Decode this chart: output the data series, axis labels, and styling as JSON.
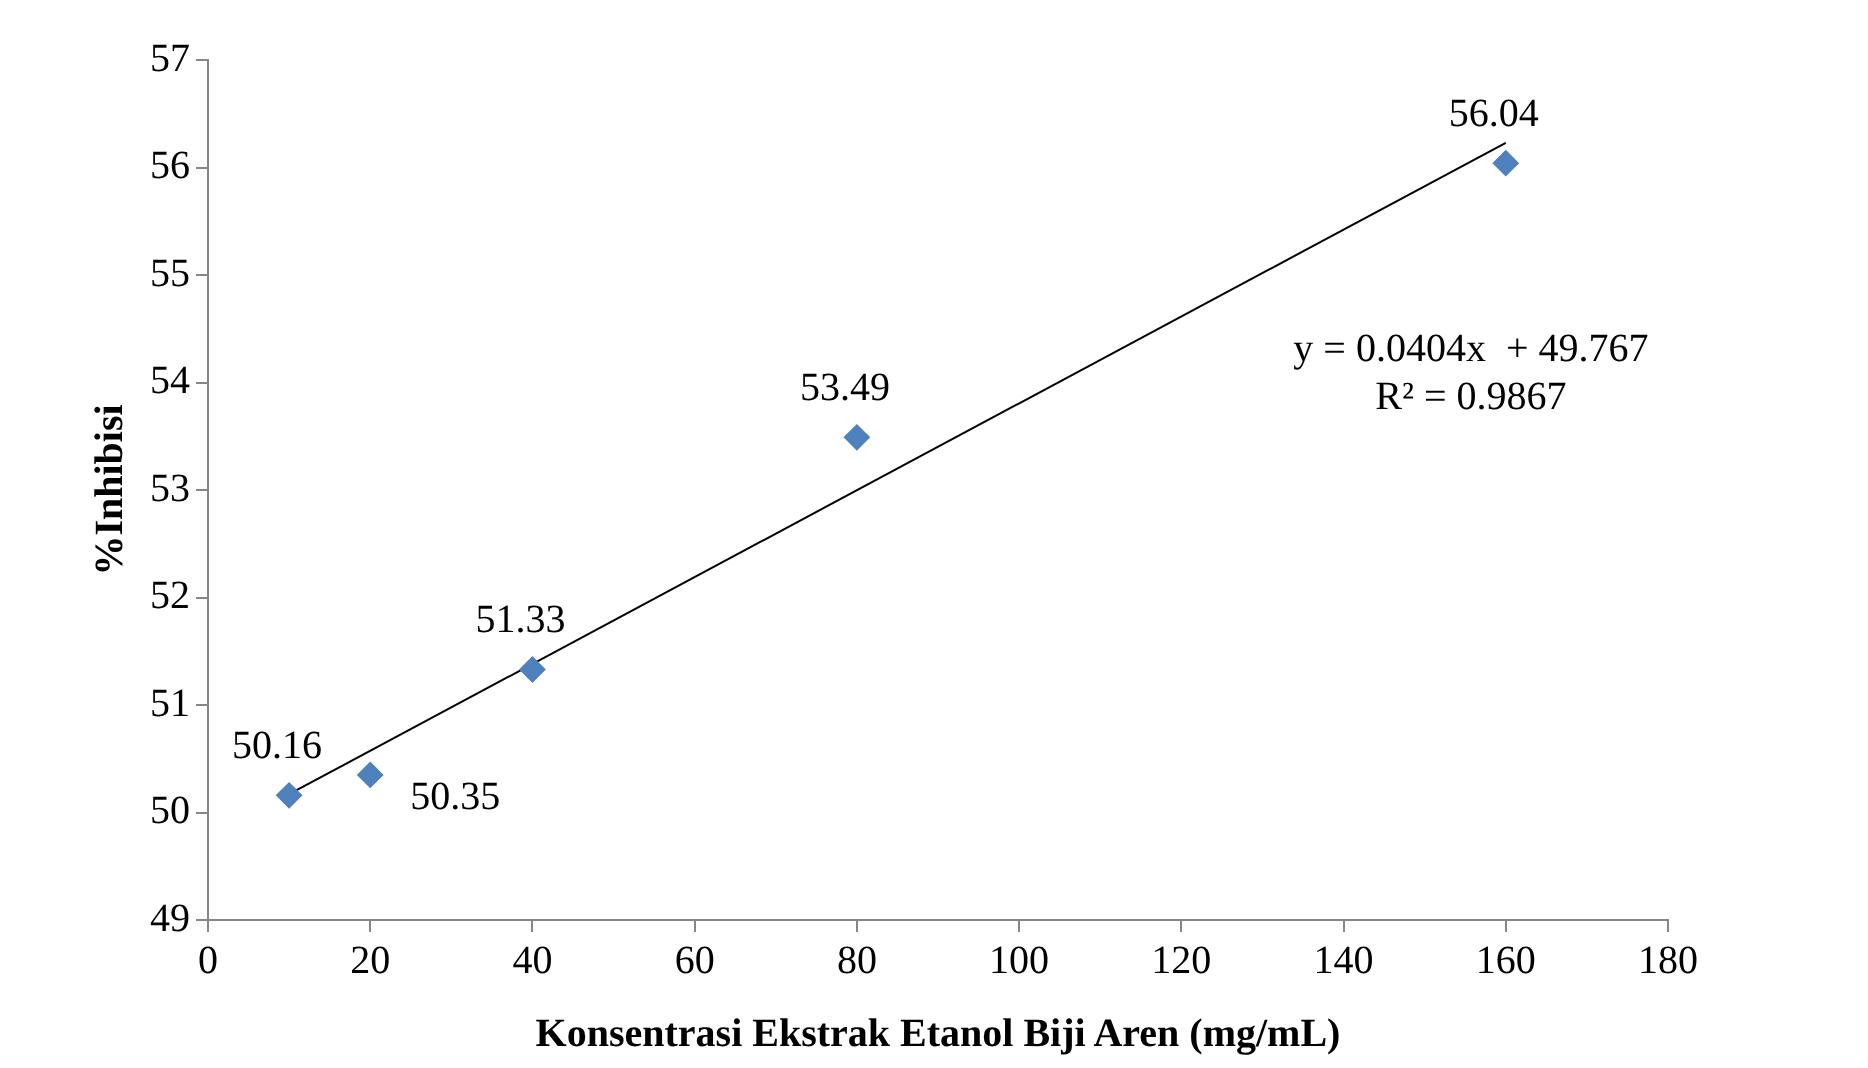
{
  "chart_data": {
    "type": "scatter",
    "xlabel": "Konsentrasi Ekstrak Etanol Biji Aren (mg/mL)",
    "ylabel": "%Inhibisi",
    "x": [
      10,
      20,
      40,
      80,
      160
    ],
    "series": [
      {
        "color": "#4f81bd",
        "values": [
          50.16,
          50.35,
          51.33,
          53.49,
          56.04
        ],
        "value_labels": [
          "50.16",
          "50.35",
          "51.33",
          "53.49",
          "56.04"
        ]
      },
      {
        "type": "line",
        "color": "#000000",
        "x": [
          10,
          160
        ],
        "values": [
          50.17,
          56.23
        ],
        "marker": "none"
      }
    ],
    "xlim": [
      0,
      180
    ],
    "xticks": [
      0,
      20,
      40,
      60,
      80,
      100,
      120,
      140,
      160,
      180
    ],
    "ylim": [
      49,
      57
    ],
    "yticks": [
      49,
      50,
      51,
      52,
      53,
      54,
      55,
      56,
      57
    ],
    "marker": "diamond",
    "grid": false,
    "legend": false,
    "annotations": [
      "y = 0.0404x  + 49.767",
      "R² = 0.9867"
    ]
  }
}
